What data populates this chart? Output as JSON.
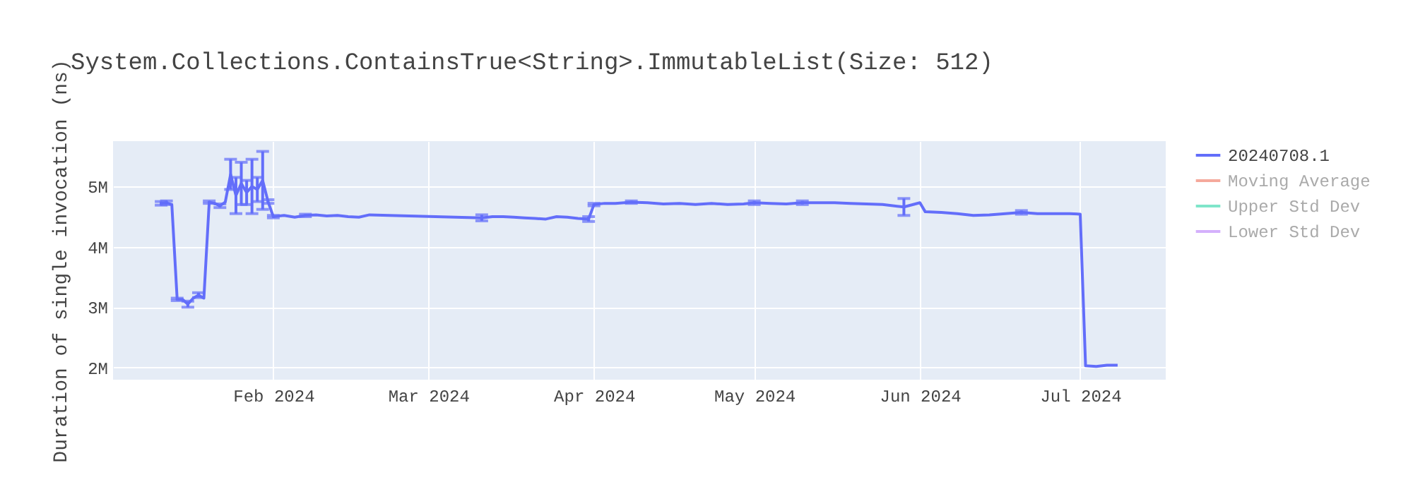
{
  "chart_data": {
    "type": "line",
    "title": "System.Collections.ContainsTrue<String>.ImmutableList(Size: 512)",
    "ylabel": "Duration of single invocation (ns)",
    "x": [
      "2024-01-11",
      "2024-01-12",
      "2024-01-13",
      "2024-01-14",
      "2024-01-15",
      "2024-01-16",
      "2024-01-17",
      "2024-01-18",
      "2024-01-19",
      "2024-01-20",
      "2024-01-21",
      "2024-01-22",
      "2024-01-23",
      "2024-01-24",
      "2024-01-25",
      "2024-01-26",
      "2024-01-27",
      "2024-01-28",
      "2024-01-29",
      "2024-01-30",
      "2024-01-31",
      "2024-02-01",
      "2024-02-03",
      "2024-02-05",
      "2024-02-07",
      "2024-02-09",
      "2024-02-11",
      "2024-02-13",
      "2024-02-15",
      "2024-02-17",
      "2024-02-19",
      "2024-03-11",
      "2024-03-13",
      "2024-03-15",
      "2024-03-17",
      "2024-03-19",
      "2024-03-21",
      "2024-03-23",
      "2024-03-25",
      "2024-03-27",
      "2024-03-29",
      "2024-03-31",
      "2024-04-01",
      "2024-04-03",
      "2024-04-05",
      "2024-04-08",
      "2024-04-11",
      "2024-04-14",
      "2024-04-17",
      "2024-04-20",
      "2024-04-23",
      "2024-04-26",
      "2024-04-29",
      "2024-05-01",
      "2024-05-04",
      "2024-05-07",
      "2024-05-10",
      "2024-05-13",
      "2024-05-16",
      "2024-05-19",
      "2024-05-22",
      "2024-05-25",
      "2024-05-29",
      "2024-06-01",
      "2024-06-02",
      "2024-06-05",
      "2024-06-08",
      "2024-06-11",
      "2024-06-14",
      "2024-06-17",
      "2024-06-20",
      "2024-06-23",
      "2024-06-26",
      "2024-06-29",
      "2024-07-01",
      "2024-07-02",
      "2024-07-04",
      "2024-07-06",
      "2024-07-08"
    ],
    "series": [
      {
        "name": "20240708.1",
        "color": "#636efa",
        "values": [
          4720000,
          4730000,
          4700000,
          3130000,
          3130000,
          3050000,
          3150000,
          3200000,
          3150000,
          4740000,
          4720000,
          4680000,
          4740000,
          5200000,
          4850000,
          5050000,
          4900000,
          5000000,
          4950000,
          5100000,
          4750000,
          4500000,
          4520000,
          4490000,
          4520000,
          4530000,
          4510000,
          4520000,
          4500000,
          4490000,
          4530000,
          4480000,
          4500000,
          4500000,
          4490000,
          4480000,
          4470000,
          4460000,
          4500000,
          4490000,
          4470000,
          4460000,
          4700000,
          4720000,
          4720000,
          4740000,
          4730000,
          4710000,
          4720000,
          4700000,
          4720000,
          4700000,
          4710000,
          4730000,
          4720000,
          4710000,
          4730000,
          4730000,
          4730000,
          4720000,
          4710000,
          4700000,
          4660000,
          4730000,
          4580000,
          4570000,
          4550000,
          4520000,
          4530000,
          4550000,
          4570000,
          4550000,
          4550000,
          4550000,
          4540000,
          2030000,
          2020000,
          2040000,
          2040000
        ],
        "errors": [
          30000,
          30000,
          null,
          20000,
          null,
          50000,
          null,
          40000,
          null,
          20000,
          null,
          30000,
          null,
          250000,
          300000,
          350000,
          200000,
          450000,
          200000,
          480000,
          30000,
          20000,
          null,
          null,
          20000,
          null,
          null,
          null,
          null,
          null,
          null,
          50000,
          null,
          null,
          null,
          null,
          null,
          null,
          null,
          null,
          null,
          40000,
          20000,
          null,
          null,
          20000,
          null,
          null,
          null,
          null,
          null,
          null,
          null,
          30000,
          null,
          null,
          30000,
          null,
          null,
          null,
          null,
          null,
          140000,
          null,
          null,
          null,
          null,
          null,
          null,
          null,
          30000,
          null,
          null,
          null,
          null,
          null,
          null,
          null,
          null
        ]
      },
      {
        "name": "Moving Average",
        "color": "#f5a99c",
        "values": [
          null,
          null,
          null,
          null,
          null,
          null,
          null,
          null,
          null,
          null,
          null,
          null,
          null,
          null,
          null,
          null,
          null,
          null,
          null,
          null,
          null,
          null,
          null,
          null,
          null,
          null,
          null,
          null,
          null,
          null,
          null,
          null,
          null,
          null,
          null,
          null,
          null,
          null,
          null,
          null,
          null,
          null,
          null,
          null,
          null,
          null,
          null,
          null,
          null,
          null,
          null,
          null,
          null,
          null,
          null,
          null,
          null,
          null,
          null,
          null,
          null,
          null,
          null,
          null,
          null,
          null,
          null,
          null,
          null,
          null,
          null,
          null,
          null,
          null,
          null,
          null,
          null,
          null,
          null
        ]
      },
      {
        "name": "Upper Std Dev",
        "color": "#7fe5ca",
        "values": [
          null,
          null,
          null,
          null,
          null,
          null,
          null,
          null,
          null,
          null,
          null,
          null,
          null,
          null,
          null,
          null,
          null,
          null,
          null,
          null,
          null,
          null,
          null,
          null,
          null,
          null,
          null,
          null,
          null,
          null,
          null,
          null,
          null,
          null,
          null,
          null,
          null,
          null,
          null,
          null,
          null,
          null,
          null,
          null,
          null,
          null,
          null,
          null,
          null,
          null,
          null,
          null,
          null,
          null,
          null,
          null,
          null,
          null,
          null,
          null,
          null,
          null,
          null,
          null,
          null,
          null,
          null,
          null,
          null,
          null,
          null,
          null,
          null,
          null,
          null,
          null,
          null,
          null,
          null
        ]
      },
      {
        "name": "Lower Std Dev",
        "color": "#d4b0fc",
        "values": [
          null,
          null,
          null,
          null,
          null,
          null,
          null,
          null,
          null,
          null,
          null,
          null,
          null,
          null,
          null,
          null,
          null,
          null,
          null,
          null,
          null,
          null,
          null,
          null,
          null,
          null,
          null,
          null,
          null,
          null,
          null,
          null,
          null,
          null,
          null,
          null,
          null,
          null,
          null,
          null,
          null,
          null,
          null,
          null,
          null,
          null,
          null,
          null,
          null,
          null,
          null,
          null,
          null,
          null,
          null,
          null,
          null,
          null,
          null,
          null,
          null,
          null,
          null,
          null,
          null,
          null,
          null,
          null,
          null,
          null,
          null,
          null,
          null,
          null,
          null,
          null,
          null,
          null,
          null
        ]
      }
    ],
    "xlim": [
      "2024-01-02",
      "2024-07-17"
    ],
    "xticks": [
      {
        "value": "2024-02-01",
        "label": "Feb 2024"
      },
      {
        "value": "2024-03-01",
        "label": "Mar 2024"
      },
      {
        "value": "2024-04-01",
        "label": "Apr 2024"
      },
      {
        "value": "2024-05-01",
        "label": "May 2024"
      },
      {
        "value": "2024-06-01",
        "label": "Jun 2024"
      },
      {
        "value": "2024-07-01",
        "label": "Jul 2024"
      }
    ],
    "ylim": [
      1800000,
      5750000
    ],
    "yticks": [
      {
        "value": 2000000,
        "label": "2M"
      },
      {
        "value": 3000000,
        "label": "3M"
      },
      {
        "value": 4000000,
        "label": "4M"
      },
      {
        "value": 5000000,
        "label": "5M"
      }
    ],
    "grid": true,
    "legend": "top right",
    "marker": "none",
    "line_style": "solid"
  }
}
